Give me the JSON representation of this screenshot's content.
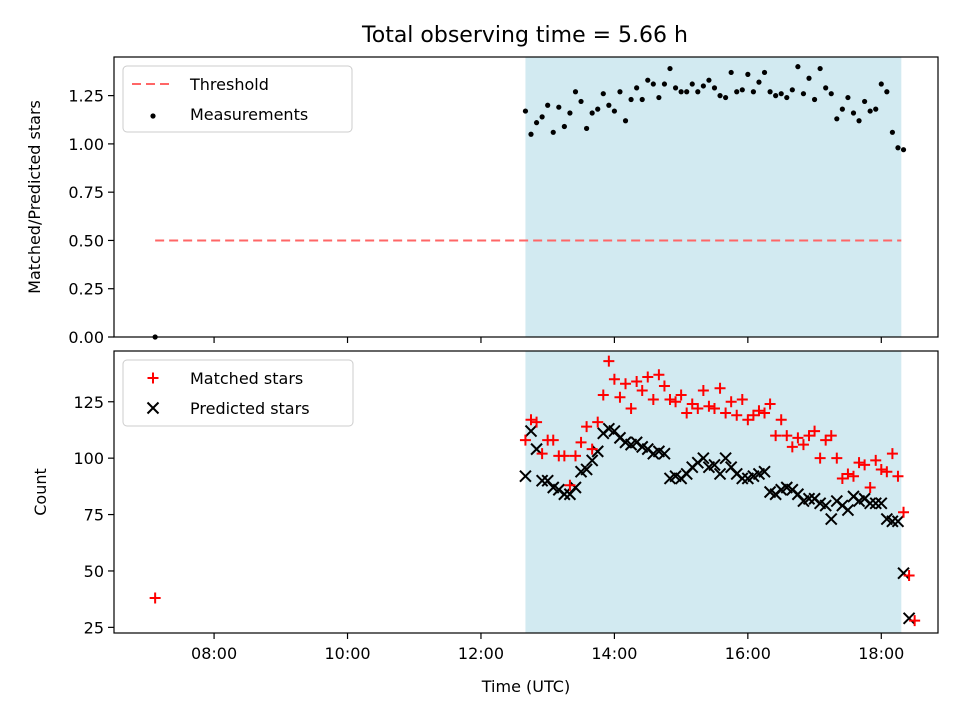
{
  "title": "Total observing time = 5.66 h",
  "colors": {
    "shade": "#add8e6",
    "threshold": "#ff6666",
    "measurement": "#000000",
    "matched": "#ff0000",
    "predicted": "#000000"
  },
  "chart_data": [
    {
      "type": "scatter",
      "ylabel": "Matched/Predicted stars",
      "ylim": [
        0,
        1.45
      ],
      "xlim_hours": [
        6.5,
        18.85
      ],
      "yticks": [
        "0.00",
        "0.25",
        "0.50",
        "0.75",
        "1.00",
        "1.25"
      ],
      "shaded_span": [
        "12:40",
        "18:18"
      ],
      "legend": [
        "Threshold",
        "Measurements"
      ],
      "legend_position": "upper left",
      "threshold": {
        "name": "Threshold",
        "y": 0.5,
        "x_range": [
          "07:07",
          "18:18"
        ]
      },
      "measurements": {
        "name": "Measurements",
        "points": [
          [
            "07:07",
            0.0
          ],
          [
            "12:40",
            1.17
          ],
          [
            "12:45",
            1.05
          ],
          [
            "12:50",
            1.11
          ],
          [
            "12:55",
            1.14
          ],
          [
            "13:00",
            1.2
          ],
          [
            "13:05",
            1.06
          ],
          [
            "13:10",
            1.19
          ],
          [
            "13:15",
            1.09
          ],
          [
            "13:20",
            1.16
          ],
          [
            "13:25",
            1.27
          ],
          [
            "13:30",
            1.22
          ],
          [
            "13:35",
            1.08
          ],
          [
            "13:40",
            1.16
          ],
          [
            "13:45",
            1.18
          ],
          [
            "13:50",
            1.26
          ],
          [
            "13:55",
            1.2
          ],
          [
            "14:00",
            1.17
          ],
          [
            "14:05",
            1.27
          ],
          [
            "14:10",
            1.12
          ],
          [
            "14:15",
            1.23
          ],
          [
            "14:20",
            1.29
          ],
          [
            "14:25",
            1.23
          ],
          [
            "14:30",
            1.33
          ],
          [
            "14:35",
            1.31
          ],
          [
            "14:40",
            1.24
          ],
          [
            "14:45",
            1.31
          ],
          [
            "14:50",
            1.39
          ],
          [
            "14:55",
            1.29
          ],
          [
            "15:00",
            1.27
          ],
          [
            "15:05",
            1.27
          ],
          [
            "15:10",
            1.31
          ],
          [
            "15:15",
            1.27
          ],
          [
            "15:20",
            1.3
          ],
          [
            "15:25",
            1.33
          ],
          [
            "15:30",
            1.29
          ],
          [
            "15:35",
            1.25
          ],
          [
            "15:40",
            1.24
          ],
          [
            "15:45",
            1.37
          ],
          [
            "15:50",
            1.27
          ],
          [
            "15:55",
            1.28
          ],
          [
            "16:00",
            1.36
          ],
          [
            "16:05",
            1.27
          ],
          [
            "16:10",
            1.32
          ],
          [
            "16:15",
            1.37
          ],
          [
            "16:20",
            1.27
          ],
          [
            "16:25",
            1.25
          ],
          [
            "16:30",
            1.26
          ],
          [
            "16:35",
            1.24
          ],
          [
            "16:40",
            1.28
          ],
          [
            "16:45",
            1.4
          ],
          [
            "16:50",
            1.26
          ],
          [
            "16:55",
            1.34
          ],
          [
            "17:00",
            1.23
          ],
          [
            "17:05",
            1.39
          ],
          [
            "17:10",
            1.29
          ],
          [
            "17:15",
            1.26
          ],
          [
            "17:20",
            1.13
          ],
          [
            "17:25",
            1.18
          ],
          [
            "17:30",
            1.24
          ],
          [
            "17:35",
            1.16
          ],
          [
            "17:40",
            1.12
          ],
          [
            "17:45",
            1.22
          ],
          [
            "17:50",
            1.17
          ],
          [
            "17:55",
            1.18
          ],
          [
            "18:00",
            1.31
          ],
          [
            "18:05",
            1.27
          ],
          [
            "18:10",
            1.06
          ],
          [
            "18:15",
            0.98
          ],
          [
            "18:20",
            0.97
          ]
        ]
      }
    },
    {
      "type": "scatter",
      "xlabel": "Time (UTC)",
      "ylabel": "Count",
      "ylim": [
        22.5,
        147.5
      ],
      "xlim_hours": [
        6.5,
        18.85
      ],
      "yticks": [
        "25",
        "50",
        "75",
        "100",
        "125"
      ],
      "xticks": [
        "08:00",
        "10:00",
        "12:00",
        "14:00",
        "16:00",
        "18:00"
      ],
      "shaded_span": [
        "12:40",
        "18:18"
      ],
      "legend": [
        "Matched stars",
        "Predicted stars"
      ],
      "legend_position": "upper left",
      "series": [
        {
          "name": "Matched stars",
          "marker": "plus",
          "points": [
            [
              "07:07",
              38
            ],
            [
              "12:40",
              108
            ],
            [
              "12:45",
              117
            ],
            [
              "12:50",
              116
            ],
            [
              "12:55",
              102
            ],
            [
              "13:00",
              108
            ],
            [
              "13:05",
              108
            ],
            [
              "13:10",
              101
            ],
            [
              "13:15",
              101
            ],
            [
              "13:20",
              88
            ],
            [
              "13:25",
              101
            ],
            [
              "13:30",
              107
            ],
            [
              "13:35",
              114
            ],
            [
              "13:40",
              104
            ],
            [
              "13:45",
              116
            ],
            [
              "13:50",
              128
            ],
            [
              "13:55",
              143
            ],
            [
              "14:00",
              135
            ],
            [
              "14:05",
              127
            ],
            [
              "14:10",
              133
            ],
            [
              "14:15",
              122
            ],
            [
              "14:20",
              134
            ],
            [
              "14:25",
              130
            ],
            [
              "14:30",
              136
            ],
            [
              "14:35",
              126
            ],
            [
              "14:40",
              137
            ],
            [
              "14:45",
              132
            ],
            [
              "14:50",
              126
            ],
            [
              "14:55",
              125
            ],
            [
              "15:00",
              128
            ],
            [
              "15:05",
              120
            ],
            [
              "15:10",
              124
            ],
            [
              "15:15",
              122
            ],
            [
              "15:20",
              130
            ],
            [
              "15:25",
              123
            ],
            [
              "15:30",
              122
            ],
            [
              "15:35",
              131
            ],
            [
              "15:40",
              120
            ],
            [
              "15:45",
              125
            ],
            [
              "15:50",
              119
            ],
            [
              "15:55",
              126
            ],
            [
              "16:00",
              117
            ],
            [
              "16:05",
              119
            ],
            [
              "16:10",
              121
            ],
            [
              "16:15",
              120
            ],
            [
              "16:20",
              124
            ],
            [
              "16:25",
              110
            ],
            [
              "16:30",
              117
            ],
            [
              "16:35",
              110
            ],
            [
              "16:40",
              105
            ],
            [
              "16:45",
              109
            ],
            [
              "16:50",
              106
            ],
            [
              "16:55",
              110
            ],
            [
              "17:00",
              112
            ],
            [
              "17:05",
              100
            ],
            [
              "17:10",
              108
            ],
            [
              "17:15",
              110
            ],
            [
              "17:20",
              100
            ],
            [
              "17:25",
              91
            ],
            [
              "17:30",
              93
            ],
            [
              "17:35",
              92
            ],
            [
              "17:40",
              98
            ],
            [
              "17:45",
              97
            ],
            [
              "17:50",
              87
            ],
            [
              "17:55",
              99
            ],
            [
              "18:00",
              95
            ],
            [
              "18:05",
              94
            ],
            [
              "18:10",
              102
            ],
            [
              "18:15",
              92
            ],
            [
              "18:20",
              76
            ],
            [
              "18:25",
              48
            ],
            [
              "18:30",
              28
            ]
          ]
        },
        {
          "name": "Predicted stars",
          "marker": "x",
          "points": [
            [
              "12:40",
              92
            ],
            [
              "12:45",
              112
            ],
            [
              "12:50",
              104
            ],
            [
              "12:55",
              90
            ],
            [
              "13:00",
              90
            ],
            [
              "13:05",
              87
            ],
            [
              "13:10",
              86
            ],
            [
              "13:15",
              84
            ],
            [
              "13:20",
              84
            ],
            [
              "13:25",
              87
            ],
            [
              "13:30",
              94
            ],
            [
              "13:35",
              95
            ],
            [
              "13:40",
              99
            ],
            [
              "13:45",
              103
            ],
            [
              "13:50",
              111
            ],
            [
              "13:55",
              113
            ],
            [
              "14:00",
              112
            ],
            [
              "14:05",
              109
            ],
            [
              "14:10",
              107
            ],
            [
              "14:15",
              106
            ],
            [
              "14:20",
              107
            ],
            [
              "14:25",
              105
            ],
            [
              "14:30",
              104
            ],
            [
              "14:35",
              102
            ],
            [
              "14:40",
              103
            ],
            [
              "14:45",
              102
            ],
            [
              "14:50",
              91
            ],
            [
              "14:55",
              92
            ],
            [
              "15:00",
              91
            ],
            [
              "15:05",
              93
            ],
            [
              "15:10",
              96
            ],
            [
              "15:15",
              98
            ],
            [
              "15:20",
              100
            ],
            [
              "15:25",
              96
            ],
            [
              "15:30",
              97
            ],
            [
              "15:35",
              93
            ],
            [
              "15:40",
              100
            ],
            [
              "15:45",
              96
            ],
            [
              "15:50",
              93
            ],
            [
              "15:55",
              91
            ],
            [
              "16:00",
              91
            ],
            [
              "16:05",
              92
            ],
            [
              "16:10",
              93
            ],
            [
              "16:15",
              94
            ],
            [
              "16:20",
              85
            ],
            [
              "16:25",
              84
            ],
            [
              "16:30",
              86
            ],
            [
              "16:35",
              87
            ],
            [
              "16:40",
              86
            ],
            [
              "16:45",
              84
            ],
            [
              "16:50",
              81
            ],
            [
              "16:55",
              82
            ],
            [
              "17:00",
              82
            ],
            [
              "17:05",
              80
            ],
            [
              "17:10",
              79
            ],
            [
              "17:15",
              73
            ],
            [
              "17:20",
              81
            ],
            [
              "17:25",
              79
            ],
            [
              "17:30",
              77
            ],
            [
              "17:35",
              83
            ],
            [
              "17:40",
              81
            ],
            [
              "17:45",
              82
            ],
            [
              "17:50",
              80
            ],
            [
              "17:55",
              80
            ],
            [
              "18:00",
              80
            ],
            [
              "18:05",
              73
            ],
            [
              "18:10",
              72
            ],
            [
              "18:15",
              72
            ],
            [
              "18:20",
              49
            ],
            [
              "18:25",
              29
            ]
          ]
        }
      ]
    }
  ]
}
